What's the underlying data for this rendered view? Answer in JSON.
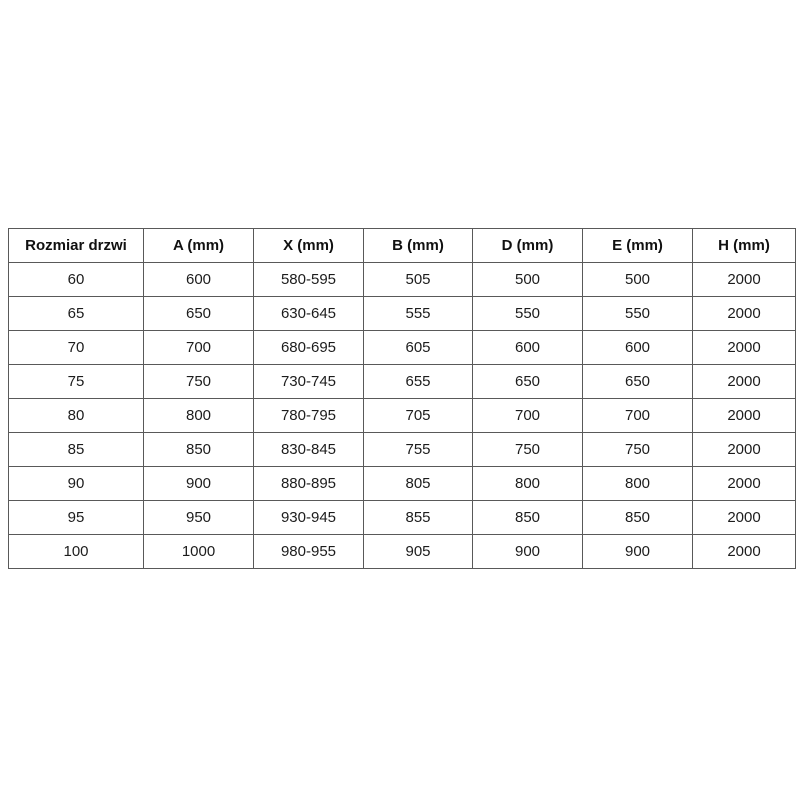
{
  "colors": {
    "background": "#ffffff",
    "border": "#595959",
    "text": "#1c1c1c"
  },
  "table": {
    "headers": [
      "Rozmiar drzwi",
      "A (mm)",
      "X (mm)",
      "B (mm)",
      "D (mm)",
      "E (mm)",
      "H (mm)"
    ],
    "rows": [
      [
        "60",
        "600",
        "580-595",
        "505",
        "500",
        "500",
        "2000"
      ],
      [
        "65",
        "650",
        "630-645",
        "555",
        "550",
        "550",
        "2000"
      ],
      [
        "70",
        "700",
        "680-695",
        "605",
        "600",
        "600",
        "2000"
      ],
      [
        "75",
        "750",
        "730-745",
        "655",
        "650",
        "650",
        "2000"
      ],
      [
        "80",
        "800",
        "780-795",
        "705",
        "700",
        "700",
        "2000"
      ],
      [
        "85",
        "850",
        "830-845",
        "755",
        "750",
        "750",
        "2000"
      ],
      [
        "90",
        "900",
        "880-895",
        "805",
        "800",
        "800",
        "2000"
      ],
      [
        "95",
        "950",
        "930-945",
        "855",
        "850",
        "850",
        "2000"
      ],
      [
        "100",
        "1000",
        "980-955",
        "905",
        "900",
        "900",
        "2000"
      ]
    ]
  },
  "chart_data": {
    "type": "table",
    "title": "",
    "columns": [
      "Rozmiar drzwi",
      "A (mm)",
      "X (mm)",
      "B (mm)",
      "D (mm)",
      "E (mm)",
      "H (mm)"
    ],
    "rows": [
      [
        "60",
        "600",
        "580-595",
        "505",
        "500",
        "500",
        "2000"
      ],
      [
        "65",
        "650",
        "630-645",
        "555",
        "550",
        "550",
        "2000"
      ],
      [
        "70",
        "700",
        "680-695",
        "605",
        "600",
        "600",
        "2000"
      ],
      [
        "75",
        "750",
        "730-745",
        "655",
        "650",
        "650",
        "2000"
      ],
      [
        "80",
        "800",
        "780-795",
        "705",
        "700",
        "700",
        "2000"
      ],
      [
        "85",
        "850",
        "830-845",
        "755",
        "750",
        "750",
        "2000"
      ],
      [
        "90",
        "900",
        "880-895",
        "805",
        "800",
        "800",
        "2000"
      ],
      [
        "95",
        "950",
        "930-945",
        "855",
        "850",
        "850",
        "2000"
      ],
      [
        "100",
        "1000",
        "980-955",
        "905",
        "900",
        "900",
        "2000"
      ]
    ]
  }
}
